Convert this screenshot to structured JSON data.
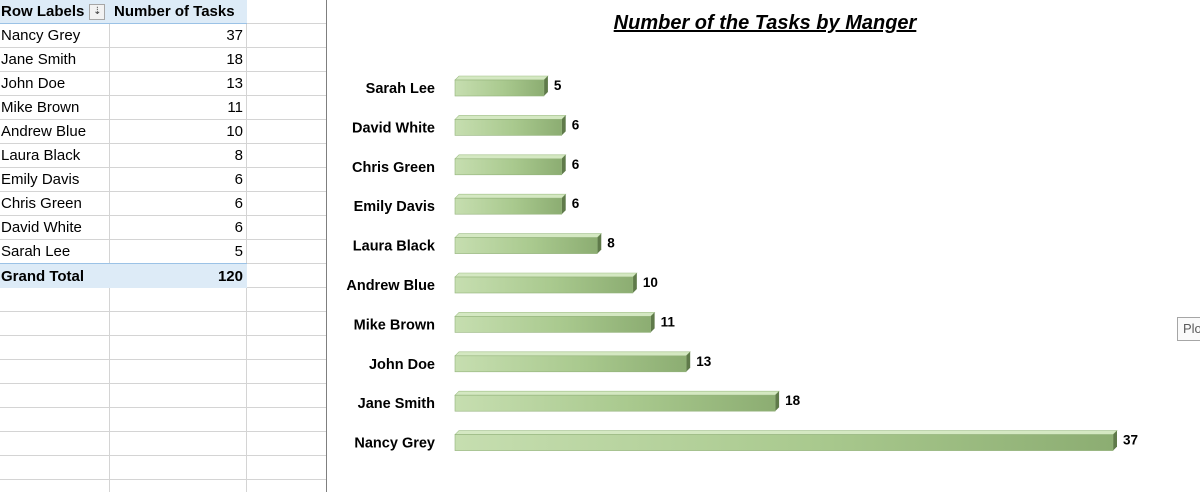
{
  "pivot": {
    "header": {
      "row_labels": "Row Labels",
      "value_header": "Number of Tasks",
      "filter_icon": "sort-filter-icon"
    },
    "rows": [
      {
        "label": "Nancy Grey",
        "value": "37"
      },
      {
        "label": "Jane Smith",
        "value": "18"
      },
      {
        "label": "John Doe",
        "value": "13"
      },
      {
        "label": "Mike Brown",
        "value": "11"
      },
      {
        "label": "Andrew Blue",
        "value": "10"
      },
      {
        "label": "Laura Black",
        "value": "8"
      },
      {
        "label": "Emily Davis",
        "value": "6"
      },
      {
        "label": "Chris Green",
        "value": "6"
      },
      {
        "label": "David White",
        "value": "6"
      },
      {
        "label": "Sarah Lee",
        "value": "5"
      }
    ],
    "total": {
      "label": "Grand Total",
      "value": "120"
    }
  },
  "plot_tag": "Plo",
  "chart_data": {
    "type": "bar",
    "orientation": "horizontal",
    "style": "3d",
    "title": "Number of the Tasks by Manger",
    "categories": [
      "Sarah Lee",
      "David White",
      "Chris Green",
      "Emily Davis",
      "Laura Black",
      "Andrew Blue",
      "Mike Brown",
      "John Doe",
      "Jane Smith",
      "Nancy Grey"
    ],
    "values": [
      5,
      6,
      6,
      6,
      8,
      10,
      11,
      13,
      18,
      37
    ],
    "xlim": [
      0,
      37
    ],
    "grid": false,
    "legend": "none",
    "data_labels": true,
    "bar_color": "#a9c98e"
  }
}
